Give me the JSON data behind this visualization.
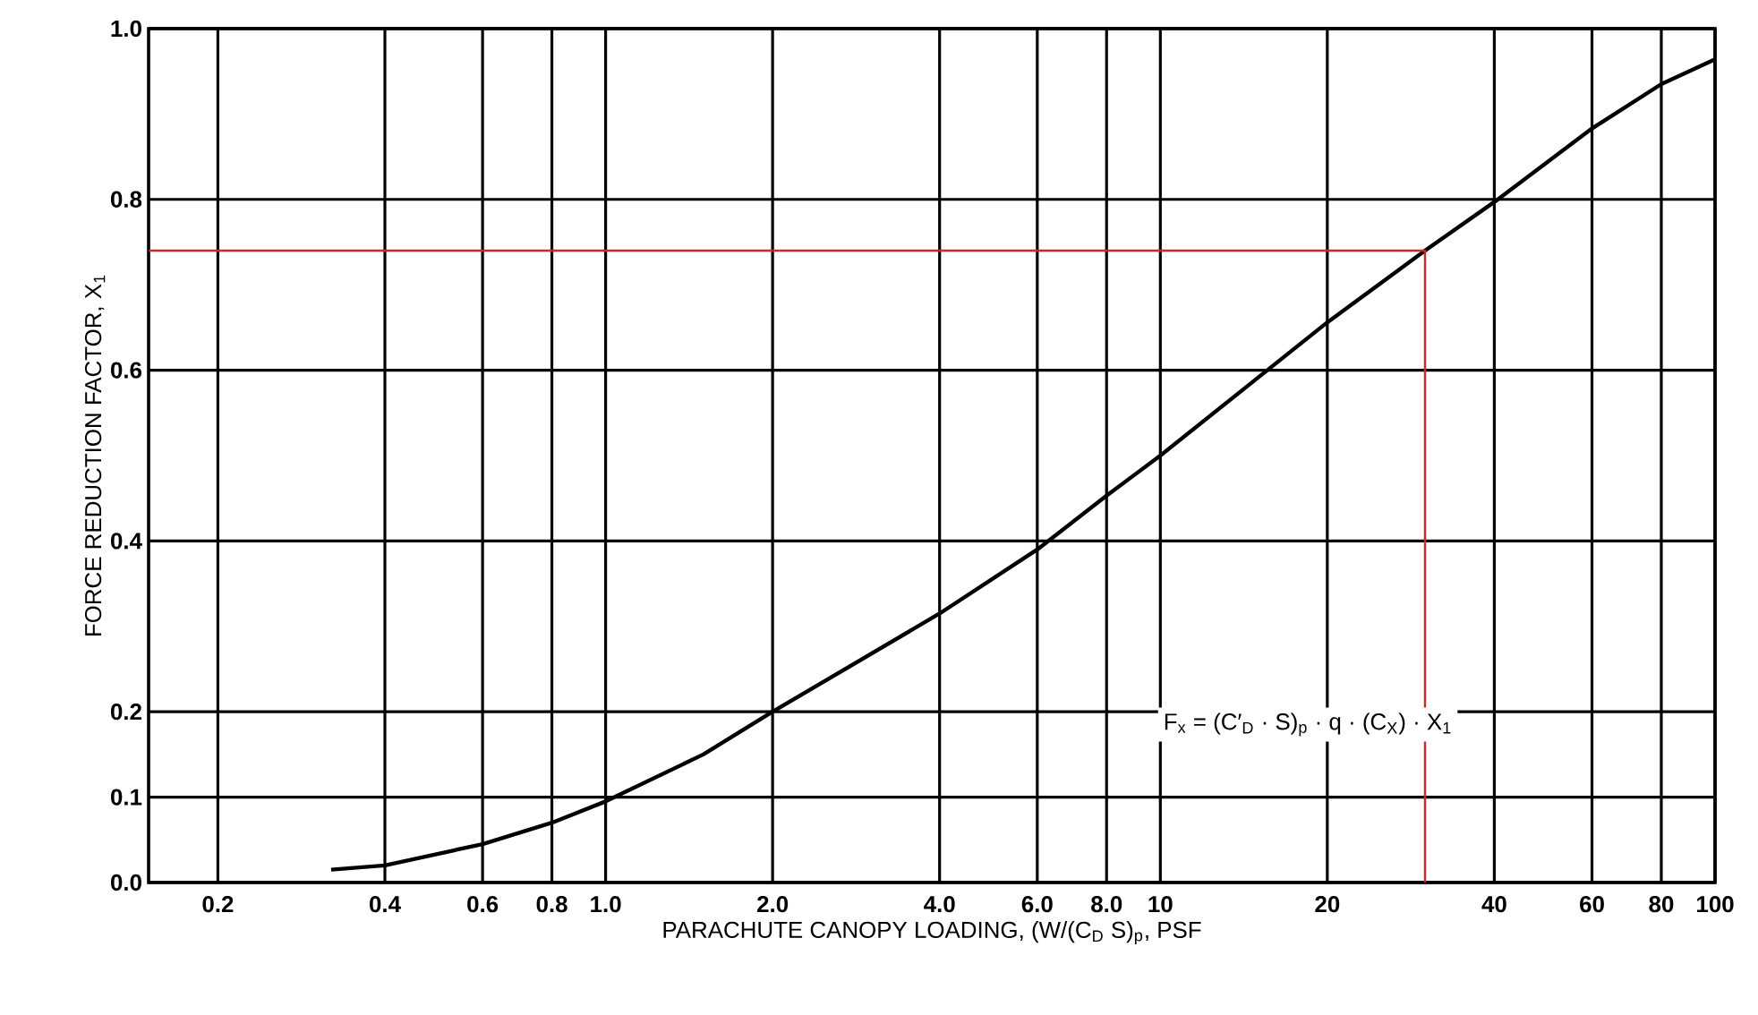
{
  "chart_data": {
    "type": "line",
    "xlabel": "PARACHUTE CANOPY LOADING, (W/(C$_{D}$ S)$_{p}$, PSF",
    "ylabel": "FORCE REDUCTION FACTOR, X$_{1}$",
    "log": "x",
    "grid": true,
    "xlim": [
      0.15,
      100
    ],
    "ylim": [
      0,
      1
    ],
    "xticks": [
      0.2,
      0.4,
      0.6,
      0.8,
      {
        "value": 1,
        "label": "1.0"
      },
      {
        "value": 2,
        "label": "2.0"
      },
      {
        "value": 4,
        "label": "4.0"
      },
      {
        "value": 6,
        "label": "6.0"
      },
      {
        "value": 8,
        "label": "8.0"
      },
      10,
      20,
      40,
      60,
      80,
      100
    ],
    "yticks": [
      {
        "value": 0,
        "label": "0.0"
      },
      0.1,
      0.2,
      0.4,
      0.6,
      0.8,
      {
        "value": 1,
        "label": "1.0"
      }
    ],
    "annotations": [
      "F$_{x}$ = (C′$_{D}$ · S)$_{p}$ · q · (C$_{X}$) · X$_{1}$"
    ],
    "series": [
      {
        "color": "#000000",
        "line_style": "solid",
        "x": [
          0.32,
          0.4,
          0.6,
          0.8,
          1.0,
          1.5,
          2.0,
          4.0,
          6.0,
          8.0,
          10,
          20,
          30,
          40,
          60,
          80,
          100
        ],
        "values": [
          0.015,
          0.02,
          0.045,
          0.07,
          0.095,
          0.15,
          0.2,
          0.315,
          0.39,
          0.453,
          0.5,
          0.656,
          0.74,
          0.797,
          0.883,
          0.935,
          0.964
        ]
      },
      {
        "color": "#cc2a2a",
        "line_style": "solid",
        "x": [
          0.15,
          30,
          30
        ],
        "values": [
          0.74,
          0.74,
          0
        ]
      }
    ]
  }
}
